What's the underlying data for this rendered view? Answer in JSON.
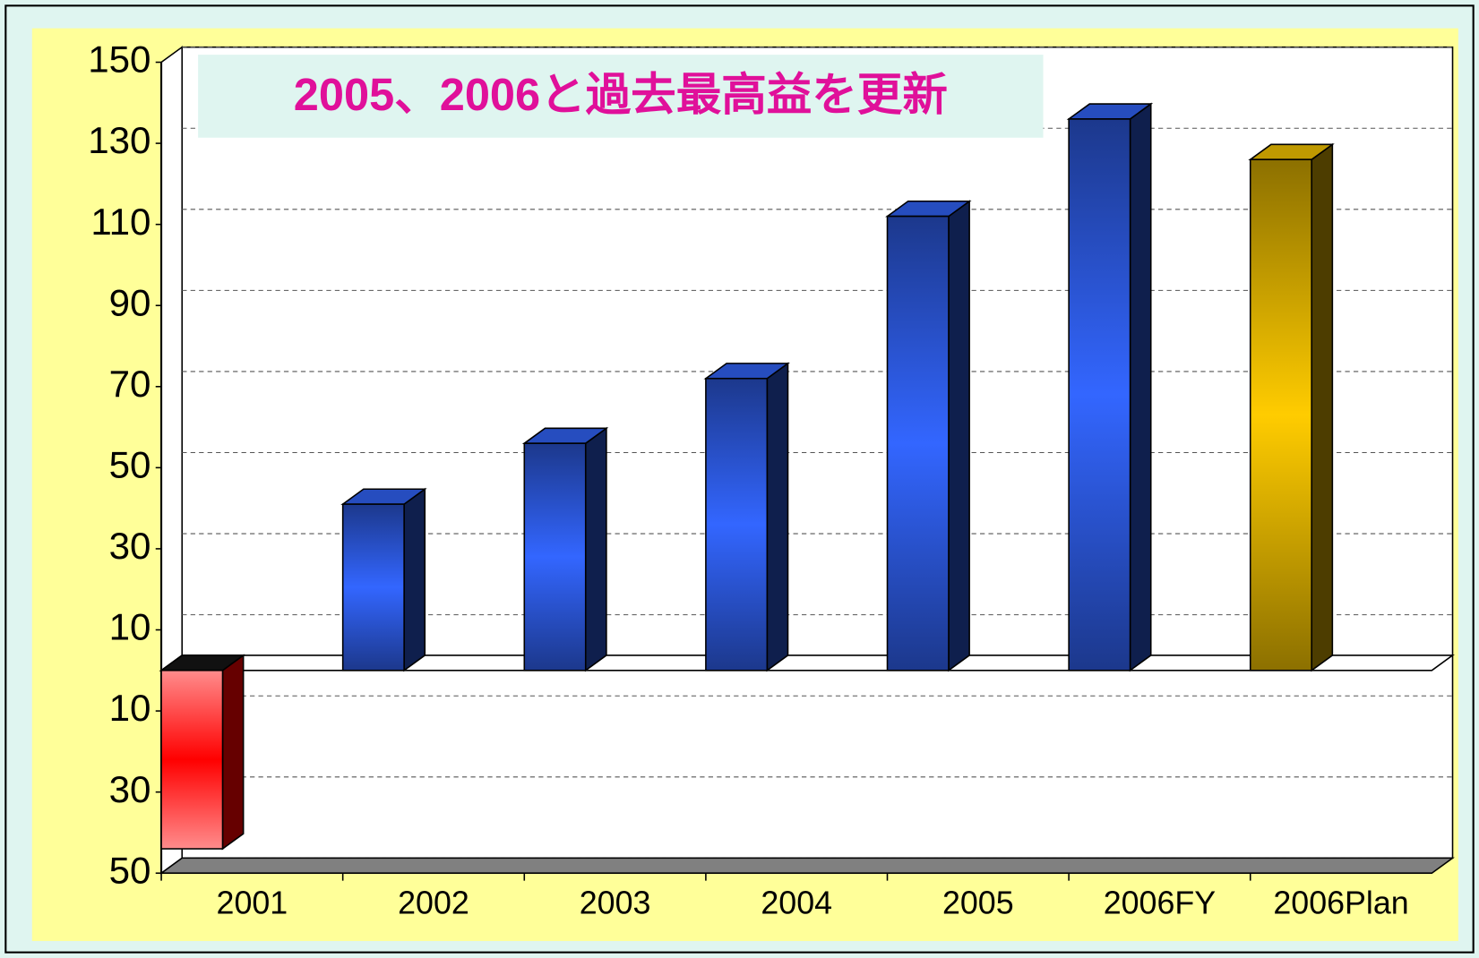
{
  "chart_data": {
    "type": "bar3d",
    "title": "2005、2006と過去最高益を更新",
    "categories": [
      "2001",
      "2002",
      "2003",
      "2004",
      "2005",
      "2006FY",
      "2006Plan"
    ],
    "values": [
      -44,
      41,
      56,
      72,
      112,
      136,
      126
    ],
    "colors": [
      "#ff0000",
      "#3366ff",
      "#3366ff",
      "#3366ff",
      "#3366ff",
      "#3366ff",
      "#ffcc00"
    ],
    "ylim": [
      -50,
      150
    ],
    "yticks": [
      150,
      130,
      110,
      90,
      70,
      50,
      30,
      10,
      {
        "value": -10,
        "label": "10"
      },
      {
        "value": -30,
        "label": "30"
      },
      {
        "value": -50,
        "label": "50"
      }
    ],
    "grid": true
  }
}
